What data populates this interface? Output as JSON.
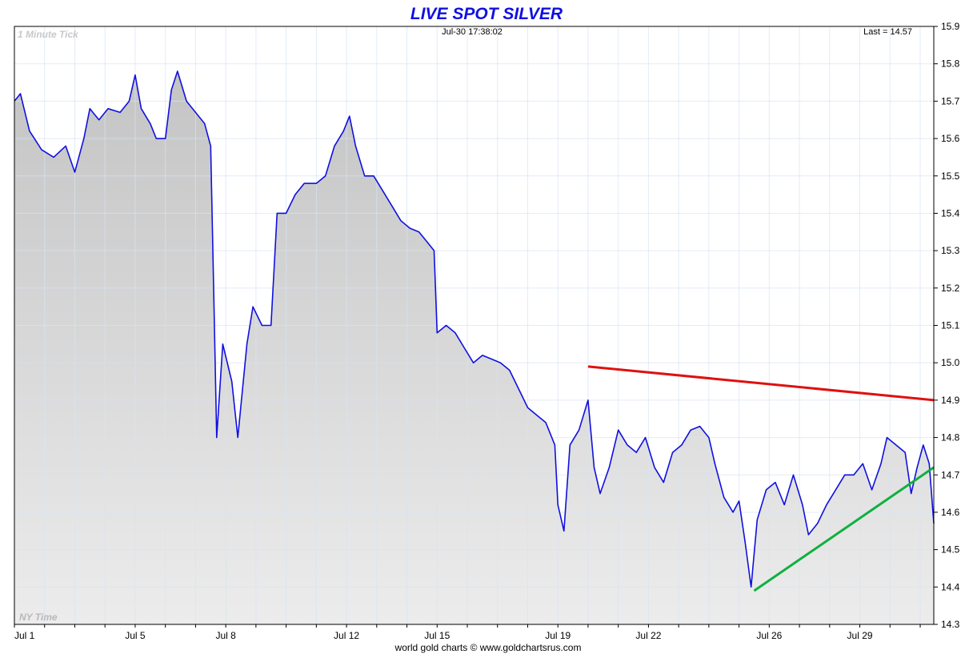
{
  "chart_data": {
    "type": "area",
    "title": "LIVE SPOT SILVER",
    "timestamp": "Jul-30  17:38:02",
    "last_label": "Last = 14.57",
    "interval_label": "1 Minute Tick",
    "timezone_label": "NY Time",
    "credit": "world gold charts © www.goldchartsrus.com",
    "ylim": [
      14.3,
      15.9
    ],
    "xlim": [
      1,
      31.45
    ],
    "y_ticks": [
      "14.3",
      "14.4",
      "14.5",
      "14.6",
      "14.7",
      "14.8",
      "14.9",
      "15.0",
      "15.1",
      "15.2",
      "15.3",
      "15.4",
      "15.5",
      "15.6",
      "15.7",
      "15.8",
      "15.9"
    ],
    "x_ticks": [
      {
        "label": "Jul 1",
        "x": 1
      },
      {
        "label": "Jul 5",
        "x": 5
      },
      {
        "label": "Jul 8",
        "x": 8
      },
      {
        "label": "Jul 12",
        "x": 12
      },
      {
        "label": "Jul 15",
        "x": 15
      },
      {
        "label": "Jul 19",
        "x": 19
      },
      {
        "label": "Jul 22",
        "x": 22
      },
      {
        "label": "Jul 26",
        "x": 26
      },
      {
        "label": "Jul 29",
        "x": 29
      }
    ],
    "grid": true,
    "series": [
      {
        "color": "#1010e0",
        "points": [
          [
            1.0,
            15.7
          ],
          [
            1.2,
            15.72
          ],
          [
            1.5,
            15.62
          ],
          [
            1.9,
            15.57
          ],
          [
            2.3,
            15.55
          ],
          [
            2.7,
            15.58
          ],
          [
            3.0,
            15.51
          ],
          [
            3.3,
            15.6
          ],
          [
            3.5,
            15.68
          ],
          [
            3.8,
            15.65
          ],
          [
            4.1,
            15.68
          ],
          [
            4.5,
            15.67
          ],
          [
            4.8,
            15.7
          ],
          [
            5.0,
            15.77
          ],
          [
            5.2,
            15.68
          ],
          [
            5.5,
            15.64
          ],
          [
            5.7,
            15.6
          ],
          [
            6.0,
            15.6
          ],
          [
            6.2,
            15.73
          ],
          [
            6.4,
            15.78
          ],
          [
            6.7,
            15.7
          ],
          [
            7.0,
            15.67
          ],
          [
            7.3,
            15.64
          ],
          [
            7.5,
            15.58
          ],
          [
            7.6,
            15.2
          ],
          [
            7.7,
            14.8
          ],
          [
            7.9,
            15.05
          ],
          [
            8.2,
            14.95
          ],
          [
            8.4,
            14.8
          ],
          [
            8.7,
            15.05
          ],
          [
            8.9,
            15.15
          ],
          [
            9.2,
            15.1
          ],
          [
            9.5,
            15.1
          ],
          [
            9.7,
            15.4
          ],
          [
            10.0,
            15.4
          ],
          [
            10.3,
            15.45
          ],
          [
            10.6,
            15.48
          ],
          [
            11.0,
            15.48
          ],
          [
            11.3,
            15.5
          ],
          [
            11.6,
            15.58
          ],
          [
            11.9,
            15.62
          ],
          [
            12.1,
            15.66
          ],
          [
            12.3,
            15.58
          ],
          [
            12.6,
            15.5
          ],
          [
            12.9,
            15.5
          ],
          [
            13.2,
            15.46
          ],
          [
            13.5,
            15.42
          ],
          [
            13.8,
            15.38
          ],
          [
            14.1,
            15.36
          ],
          [
            14.4,
            15.35
          ],
          [
            14.7,
            15.32
          ],
          [
            14.9,
            15.3
          ],
          [
            15.0,
            15.08
          ],
          [
            15.3,
            15.1
          ],
          [
            15.6,
            15.08
          ],
          [
            15.9,
            15.04
          ],
          [
            16.2,
            15.0
          ],
          [
            16.5,
            15.02
          ],
          [
            16.8,
            15.01
          ],
          [
            17.1,
            15.0
          ],
          [
            17.4,
            14.98
          ],
          [
            17.7,
            14.93
          ],
          [
            18.0,
            14.88
          ],
          [
            18.3,
            14.86
          ],
          [
            18.6,
            14.84
          ],
          [
            18.9,
            14.78
          ],
          [
            19.0,
            14.62
          ],
          [
            19.2,
            14.55
          ],
          [
            19.4,
            14.78
          ],
          [
            19.7,
            14.82
          ],
          [
            20.0,
            14.9
          ],
          [
            20.2,
            14.72
          ],
          [
            20.4,
            14.65
          ],
          [
            20.7,
            14.72
          ],
          [
            21.0,
            14.82
          ],
          [
            21.3,
            14.78
          ],
          [
            21.6,
            14.76
          ],
          [
            21.9,
            14.8
          ],
          [
            22.2,
            14.72
          ],
          [
            22.5,
            14.68
          ],
          [
            22.8,
            14.76
          ],
          [
            23.1,
            14.78
          ],
          [
            23.4,
            14.82
          ],
          [
            23.7,
            14.83
          ],
          [
            24.0,
            14.8
          ],
          [
            24.2,
            14.73
          ],
          [
            24.5,
            14.64
          ],
          [
            24.8,
            14.6
          ],
          [
            25.0,
            14.63
          ],
          [
            25.2,
            14.52
          ],
          [
            25.4,
            14.4
          ],
          [
            25.6,
            14.58
          ],
          [
            25.9,
            14.66
          ],
          [
            26.2,
            14.68
          ],
          [
            26.5,
            14.62
          ],
          [
            26.8,
            14.7
          ],
          [
            27.1,
            14.62
          ],
          [
            27.3,
            14.54
          ],
          [
            27.6,
            14.57
          ],
          [
            27.9,
            14.62
          ],
          [
            28.2,
            14.66
          ],
          [
            28.5,
            14.7
          ],
          [
            28.8,
            14.7
          ],
          [
            29.1,
            14.73
          ],
          [
            29.4,
            14.66
          ],
          [
            29.7,
            14.73
          ],
          [
            29.9,
            14.8
          ],
          [
            30.2,
            14.78
          ],
          [
            30.5,
            14.76
          ],
          [
            30.7,
            14.65
          ],
          [
            30.9,
            14.72
          ],
          [
            31.1,
            14.78
          ],
          [
            31.3,
            14.73
          ],
          [
            31.45,
            14.57
          ]
        ]
      }
    ],
    "trendlines": [
      {
        "color": "#e01010",
        "from": [
          20.0,
          14.99
        ],
        "to": [
          31.45,
          14.9
        ]
      },
      {
        "color": "#10b040",
        "from": [
          25.5,
          14.39
        ],
        "to": [
          31.45,
          14.72
        ]
      }
    ]
  }
}
